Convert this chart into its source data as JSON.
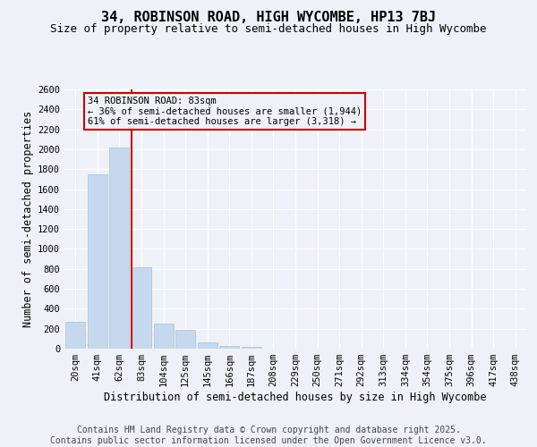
{
  "title": "34, ROBINSON ROAD, HIGH WYCOMBE, HP13 7BJ",
  "subtitle": "Size of property relative to semi-detached houses in High Wycombe",
  "xlabel": "Distribution of semi-detached houses by size in High Wycombe",
  "ylabel": "Number of semi-detached properties",
  "categories": [
    "20sqm",
    "41sqm",
    "62sqm",
    "83sqm",
    "104sqm",
    "125sqm",
    "145sqm",
    "166sqm",
    "187sqm",
    "208sqm",
    "229sqm",
    "250sqm",
    "271sqm",
    "292sqm",
    "313sqm",
    "334sqm",
    "354sqm",
    "375sqm",
    "396sqm",
    "417sqm",
    "438sqm"
  ],
  "values": [
    270,
    1750,
    2020,
    820,
    255,
    190,
    65,
    30,
    20,
    0,
    0,
    0,
    0,
    0,
    0,
    0,
    0,
    0,
    0,
    0,
    0
  ],
  "bar_color": "#c5d8ed",
  "bar_edge_color": "#a8c0d8",
  "vline_color": "#cc0000",
  "vline_index": 3,
  "annotation_text": "34 ROBINSON ROAD: 83sqm\n← 36% of semi-detached houses are smaller (1,944)\n61% of semi-detached houses are larger (3,318) →",
  "annotation_box_color": "#cc0000",
  "ylim": [
    0,
    2600
  ],
  "yticks": [
    0,
    200,
    400,
    600,
    800,
    1000,
    1200,
    1400,
    1600,
    1800,
    2000,
    2200,
    2400,
    2600
  ],
  "background_color": "#eef2f8",
  "grid_color": "#ffffff",
  "title_fontsize": 11,
  "subtitle_fontsize": 9,
  "axis_label_fontsize": 8.5,
  "tick_fontsize": 7.5,
  "footer_text": "Contains HM Land Registry data © Crown copyright and database right 2025.\nContains public sector information licensed under the Open Government Licence v3.0.",
  "footer_fontsize": 7
}
